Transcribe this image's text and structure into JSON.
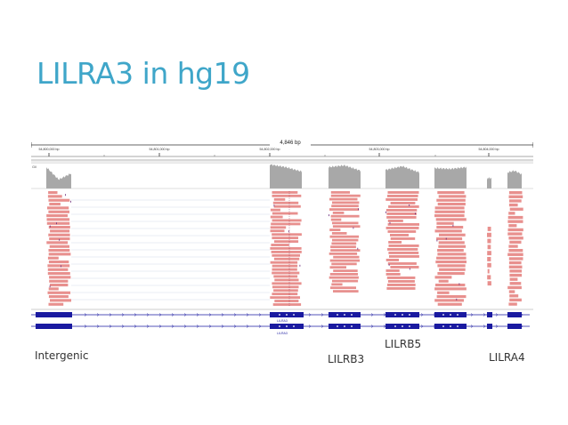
{
  "slide": {
    "title": "LILRA3 in hg19",
    "title_color": "#3fa6c9"
  },
  "igv": {
    "window_width_label": "4,846 bp",
    "ruler_ticks": [
      "54,800,000 bp",
      "54,801,000 bp",
      "54,802,000 bp",
      "54,803,000 bp",
      "54,804,000 bp"
    ],
    "track_label": "Gil",
    "gene_names": [
      "LILRA3",
      "LILRA3"
    ],
    "coverage_color": "#a8a8a8",
    "read_color": "#e8908e",
    "gene_color": "#1a1aa0"
  },
  "labels": {
    "intergenic": "Intergenic",
    "lilrb3": "LILRB3",
    "lilrb5": "LILRB5",
    "lilra4": "LILRA4"
  }
}
